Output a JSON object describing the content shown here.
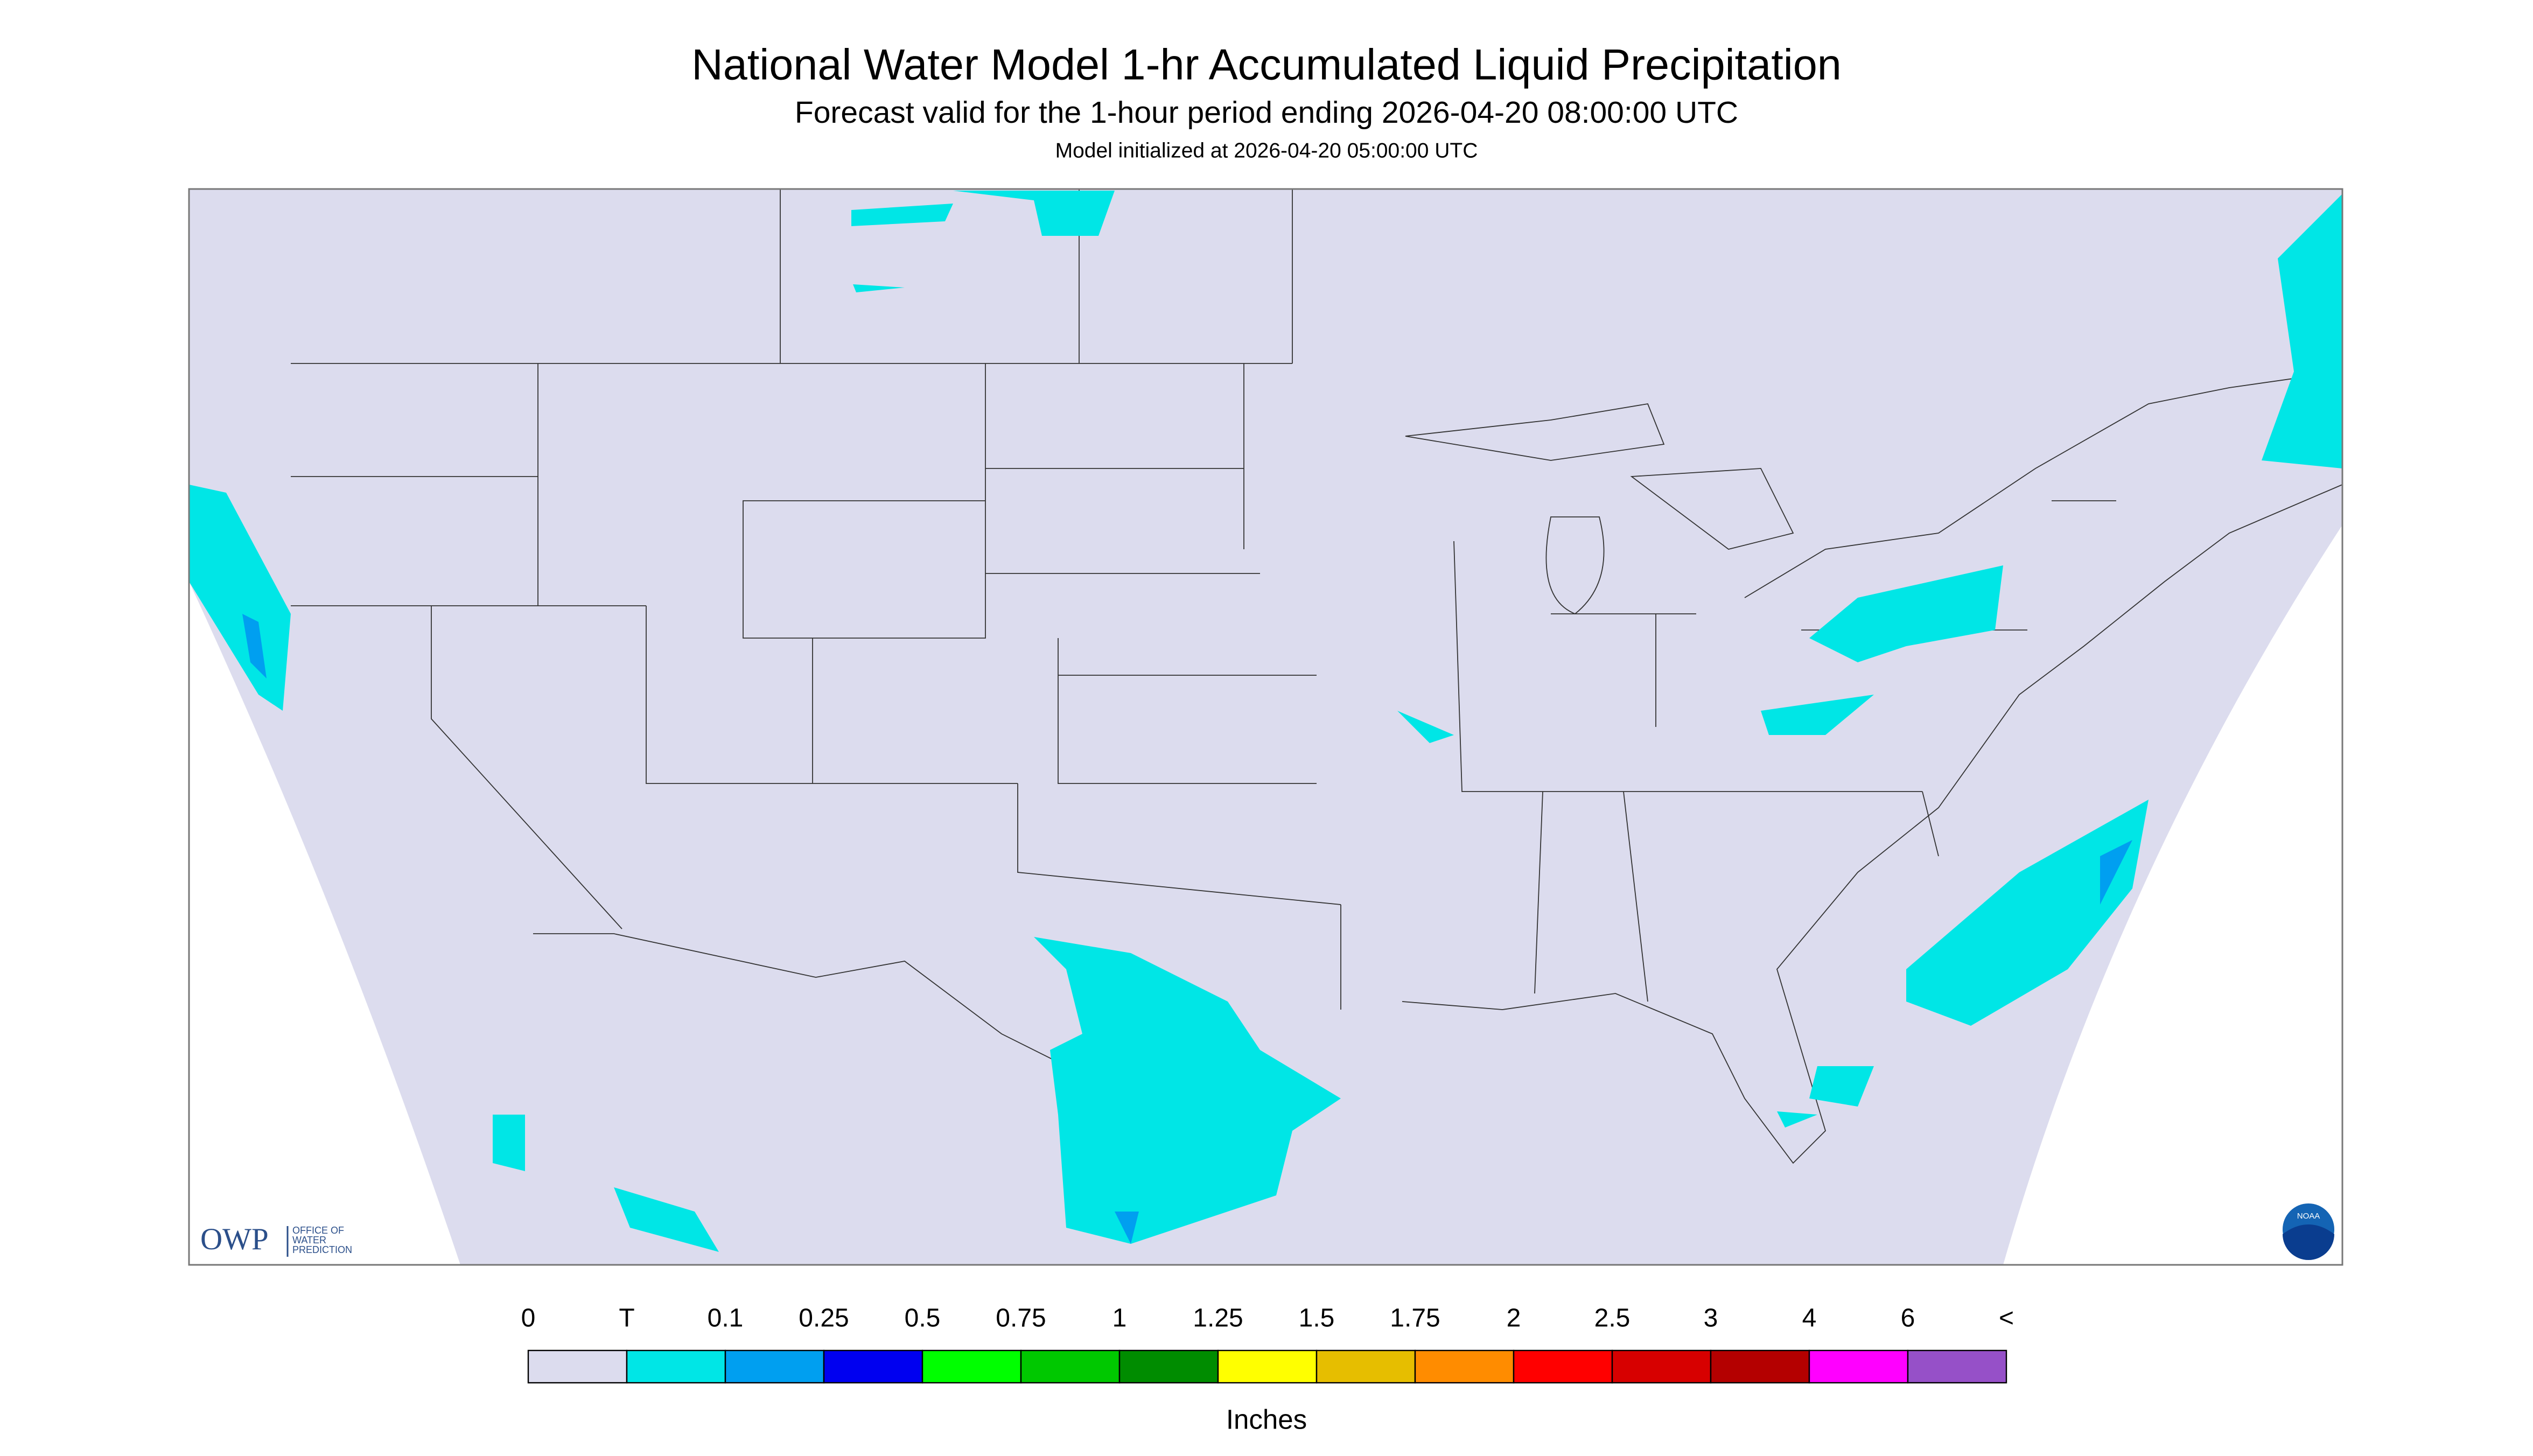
{
  "header": {
    "title": "National Water Model 1-hr Accumulated Liquid Precipitation",
    "subtitle": "Forecast valid for the 1-hour period ending 2026-04-20 08:00:00 UTC",
    "note": "Model initialized at 2026-04-20 05:00:00 UTC"
  },
  "logo": {
    "name": "OWP",
    "lines": [
      "OFFICE OF",
      "WATER",
      "PREDICTION"
    ],
    "badge": "NOAA"
  },
  "legend": {
    "labels": [
      "0",
      "T",
      "0.1",
      "0.25",
      "0.5",
      "0.75",
      "1",
      "1.25",
      "1.5",
      "1.75",
      "2",
      "2.5",
      "3",
      "4",
      "6",
      "<"
    ],
    "colors": [
      "#dcdcee",
      "#00e6e6",
      "#009ff0",
      "#0000f0",
      "#00ff00",
      "#00c800",
      "#008c00",
      "#ffff00",
      "#e6be00",
      "#ff8c00",
      "#ff0000",
      "#d70000",
      "#b40000",
      "#ff00ff",
      "#9650c8"
    ],
    "unit": "Inches"
  }
}
